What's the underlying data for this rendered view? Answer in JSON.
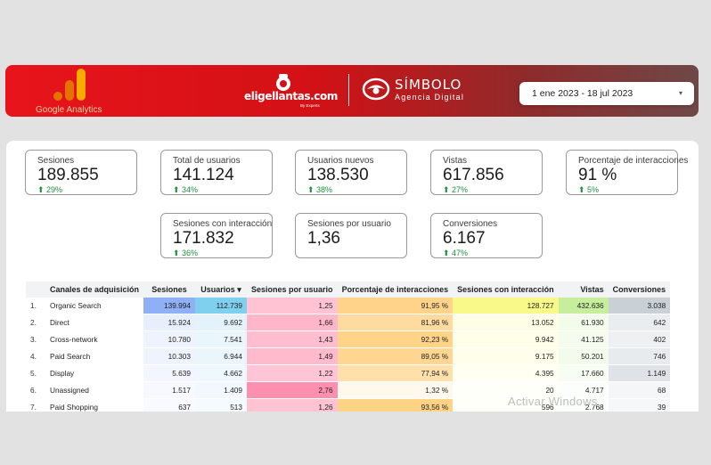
{
  "header": {
    "ga_label": "Google Analytics",
    "brand_text": "eligellantas.com",
    "brand_sub": "By Experts",
    "agency_name": "SÍMBOLO",
    "agency_sub": "Agencia Digital",
    "date_range": "1 ene 2023 - 18 jul 2023",
    "caret": "▾"
  },
  "kpis": [
    {
      "label": "Sesiones",
      "value": "189.855",
      "change": "⬆ 29%"
    },
    {
      "label": "Total de usuarios",
      "value": "141.124",
      "change": "⬆ 34%"
    },
    {
      "label": "Usuarios nuevos",
      "value": "138.530",
      "change": "⬆ 38%"
    },
    {
      "label": "Vistas",
      "value": "617.856",
      "change": "⬆ 27%"
    },
    {
      "label": "Porcentaje de interacciones",
      "value": "91 %",
      "change": "⬆ 5%"
    },
    {
      "label": "Sesiones con interacción",
      "value": "171.832",
      "change": "⬆ 36%"
    },
    {
      "label": "Sesiones por usuario",
      "value": "1,36",
      "change": ""
    },
    {
      "label": "Conversiones",
      "value": "6.167",
      "change": "⬆ 47%"
    }
  ],
  "table": {
    "headers": [
      "Canales de adquisición",
      "Sesiones",
      "Usuarios ▾",
      "Sesiones por usuario",
      "Porcentaje de interacciones",
      "Sesiones con interacción",
      "Vistas",
      "Conversiones"
    ],
    "rows": [
      {
        "idx": "1.",
        "channel": "Organic Search",
        "sesiones": "139.994",
        "usuarios": "112.739",
        "spu": "1,25",
        "pct": "91,95 %",
        "swi": "128.727",
        "vistas": "432.636",
        "conv": "3.038"
      },
      {
        "idx": "2.",
        "channel": "Direct",
        "sesiones": "15.924",
        "usuarios": "9.692",
        "spu": "1,66",
        "pct": "81,96 %",
        "swi": "13.052",
        "vistas": "61.930",
        "conv": "642"
      },
      {
        "idx": "3.",
        "channel": "Cross-network",
        "sesiones": "10.780",
        "usuarios": "7.541",
        "spu": "1,43",
        "pct": "92,23 %",
        "swi": "9.942",
        "vistas": "41.125",
        "conv": "402"
      },
      {
        "idx": "4.",
        "channel": "Paid Search",
        "sesiones": "10.303",
        "usuarios": "6.944",
        "spu": "1,49",
        "pct": "89,05 %",
        "swi": "9.175",
        "vistas": "50.201",
        "conv": "746"
      },
      {
        "idx": "5.",
        "channel": "Display",
        "sesiones": "5.639",
        "usuarios": "4.662",
        "spu": "1,22",
        "pct": "77,94 %",
        "swi": "4.395",
        "vistas": "17.660",
        "conv": "1.149"
      },
      {
        "idx": "6.",
        "channel": "Unassigned",
        "sesiones": "1.517",
        "usuarios": "1.409",
        "spu": "2,76",
        "pct": "1,32 %",
        "swi": "20",
        "vistas": "4.717",
        "conv": "68"
      },
      {
        "idx": "7.",
        "channel": "Paid Shopping",
        "sesiones": "637",
        "usuarios": "513",
        "spu": "1,26",
        "pct": "93,56 %",
        "swi": "596",
        "vistas": "2.768",
        "conv": "39"
      }
    ],
    "colors": {
      "sesiones": [
        "#8fb0f6",
        "#e8effc",
        "#eef3fd",
        "#eef3fd",
        "#f3f6fe",
        "#f7f9ff",
        "#f9faff"
      ],
      "usuarios": [
        "#7fd0ee",
        "#e4f3fb",
        "#e9f6fc",
        "#eaf6fc",
        "#eef8fd",
        "#f2f9fe",
        "#f4fafe"
      ],
      "spu": [
        "#ffc3d4",
        "#ffb6ca",
        "#ffbdd0",
        "#ffbacd",
        "#ffc4d5",
        "#ff8fae",
        "#ffc3d4"
      ],
      "pct": [
        "#ffd48a",
        "#ffdb9f",
        "#ffd489",
        "#ffd690",
        "#ffe0ab",
        "#fff8ed",
        "#ffd386"
      ],
      "swi": [
        "#f9f98a",
        "#fefee6",
        "#fefee9",
        "#fefeea",
        "#fffff2",
        "#fffffa",
        "#fffffa"
      ],
      "vistas": [
        "#c6ee9c",
        "#f3fbea",
        "#f5fcee",
        "#f4fbec",
        "#f8fdf3",
        "#fbfefa",
        "#fbfefa"
      ],
      "conv": [
        "#c9d0d6",
        "#eaedf0",
        "#eef0f2",
        "#e8ebee",
        "#dfe3e7",
        "#f5f6f7",
        "#f6f7f8"
      ]
    }
  },
  "watermark": "Activar Windows"
}
